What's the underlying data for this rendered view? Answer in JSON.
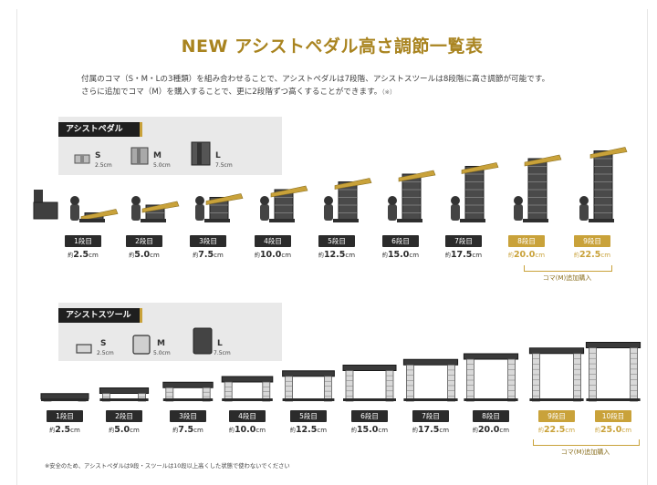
{
  "title": "NEW アシストペダル高さ調節一覧表",
  "intro": {
    "line1": "付属のコマ（S・M・Lの3種類）を組み合わせることで、アシストペダルは7段階、アシストスツールは8段階に高さ調節が可能です。",
    "line2": "さらに追加でコマ（M）を購入することで、更に2段階ずつ高くすることができます。",
    "line2_note": "（※）"
  },
  "pedal_section": {
    "heading": "アシストペダル",
    "pieces": [
      {
        "label": "S",
        "sub": "2.5cm"
      },
      {
        "label": "M",
        "sub": "5.0cm"
      },
      {
        "label": "L",
        "sub": "7.5cm"
      }
    ],
    "steps": [
      {
        "step": "1段目",
        "prefix": "約",
        "height": "2.5",
        "unit": "cm",
        "extra": false
      },
      {
        "step": "2段目",
        "prefix": "約",
        "height": "5.0",
        "unit": "cm",
        "extra": false
      },
      {
        "step": "3段目",
        "prefix": "約",
        "height": "7.5",
        "unit": "cm",
        "extra": false
      },
      {
        "step": "4段目",
        "prefix": "約",
        "height": "10.0",
        "unit": "cm",
        "extra": false
      },
      {
        "step": "5段目",
        "prefix": "約",
        "height": "12.5",
        "unit": "cm",
        "extra": false
      },
      {
        "step": "6段目",
        "prefix": "約",
        "height": "15.0",
        "unit": "cm",
        "extra": false
      },
      {
        "step": "7段目",
        "prefix": "約",
        "height": "17.5",
        "unit": "cm",
        "extra": false
      },
      {
        "step": "8段目",
        "prefix": "約",
        "height": "20.0",
        "unit": "cm",
        "extra": true
      },
      {
        "step": "9段目",
        "prefix": "約",
        "height": "22.5",
        "unit": "cm",
        "extra": true
      }
    ],
    "extra_label": "コマ(M)追加購入"
  },
  "stool_section": {
    "heading": "アシストスツール",
    "pieces": [
      {
        "label": "S",
        "sub": "2.5cm"
      },
      {
        "label": "M",
        "sub": "5.0cm"
      },
      {
        "label": "L",
        "sub": "7.5cm"
      }
    ],
    "steps": [
      {
        "step": "1段目",
        "prefix": "約",
        "height": "2.5",
        "unit": "cm",
        "extra": false
      },
      {
        "step": "2段目",
        "prefix": "約",
        "height": "5.0",
        "unit": "cm",
        "extra": false
      },
      {
        "step": "3段目",
        "prefix": "約",
        "height": "7.5",
        "unit": "cm",
        "extra": false
      },
      {
        "step": "4段目",
        "prefix": "約",
        "height": "10.0",
        "unit": "cm",
        "extra": false
      },
      {
        "step": "5段目",
        "prefix": "約",
        "height": "12.5",
        "unit": "cm",
        "extra": false
      },
      {
        "step": "6段目",
        "prefix": "約",
        "height": "15.0",
        "unit": "cm",
        "extra": false
      },
      {
        "step": "7段目",
        "prefix": "約",
        "height": "17.5",
        "unit": "cm",
        "extra": false
      },
      {
        "step": "8段目",
        "prefix": "約",
        "height": "20.0",
        "unit": "cm",
        "extra": false
      },
      {
        "step": "9段目",
        "prefix": "約",
        "height": "22.5",
        "unit": "cm",
        "extra": true
      },
      {
        "step": "10段目",
        "prefix": "約",
        "height": "25.0",
        "unit": "cm",
        "extra": true
      }
    ],
    "extra_label": "コマ(M)追加購入"
  },
  "footnote": "※安全のため、アシストペダルは9段・スツールは10段以上高くした状態で使わないでください",
  "colors": {
    "accent": "#c9a23a",
    "title": "#a98420",
    "dark": "#2b2b2b",
    "panel": "#e9e9e9"
  }
}
